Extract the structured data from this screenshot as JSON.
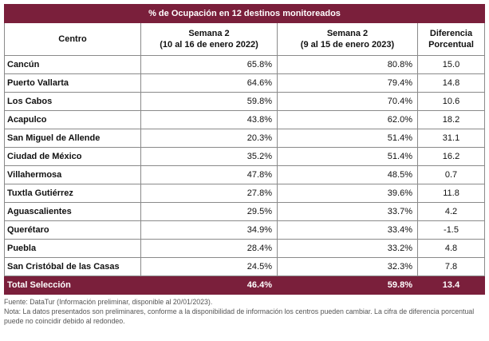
{
  "title": "% de Ocupación en 12 destinos monitoreados",
  "headers": {
    "centro": "Centro",
    "col1_l1": "Semana 2",
    "col1_l2": "(10 al 16 de enero 2022)",
    "col2_l1": "Semana 2",
    "col2_l2": "(9 al 15 de enero 2023)",
    "col3_l1": "Diferencia",
    "col3_l2": "Porcentual"
  },
  "rows": [
    {
      "centro": "Cancún",
      "s2022": "65.8%",
      "s2023": "80.8%",
      "diff": "15.0"
    },
    {
      "centro": "Puerto Vallarta",
      "s2022": "64.6%",
      "s2023": "79.4%",
      "diff": "14.8"
    },
    {
      "centro": "Los Cabos",
      "s2022": "59.8%",
      "s2023": "70.4%",
      "diff": "10.6"
    },
    {
      "centro": "Acapulco",
      "s2022": "43.8%",
      "s2023": "62.0%",
      "diff": "18.2"
    },
    {
      "centro": "San Miguel de Allende",
      "s2022": "20.3%",
      "s2023": "51.4%",
      "diff": "31.1"
    },
    {
      "centro": "Ciudad de México",
      "s2022": "35.2%",
      "s2023": "51.4%",
      "diff": "16.2"
    },
    {
      "centro": "Villahermosa",
      "s2022": "47.8%",
      "s2023": "48.5%",
      "diff": "0.7"
    },
    {
      "centro": "Tuxtla Gutiérrez",
      "s2022": "27.8%",
      "s2023": "39.6%",
      "diff": "11.8"
    },
    {
      "centro": "Aguascalientes",
      "s2022": "29.5%",
      "s2023": "33.7%",
      "diff": "4.2"
    },
    {
      "centro": "Querétaro",
      "s2022": "34.9%",
      "s2023": "33.4%",
      "diff": "-1.5"
    },
    {
      "centro": "Puebla",
      "s2022": "28.4%",
      "s2023": "33.2%",
      "diff": "4.8"
    },
    {
      "centro": "San Cristóbal de las Casas",
      "s2022": "24.5%",
      "s2023": "32.3%",
      "diff": "7.8"
    }
  ],
  "total": {
    "centro": "Total Selección",
    "s2022": "46.4%",
    "s2023": "59.8%",
    "diff": "13.4"
  },
  "notes": {
    "source": "Fuente: DataTur (Información preliminar, disponible al 20/01/2023).",
    "note": "Nota: La datos presentados son preliminares, conforme a la disponibilidad de información los centros pueden cambiar. La cifra de diferencia porcentual puede no coincidir debido al redondeo."
  },
  "colors": {
    "header_bg": "#7a1f3b",
    "header_text": "#ffffff"
  }
}
